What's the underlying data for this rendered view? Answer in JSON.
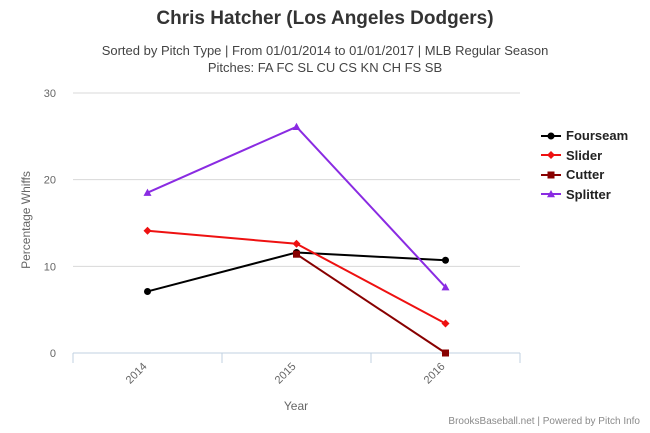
{
  "chart_data": {
    "type": "line",
    "title": "Chris Hatcher (Los Angeles Dodgers)",
    "subtitle_lines": [
      "Sorted by Pitch Type | From 01/01/2014 to 01/01/2017 | MLB Regular Season",
      "Pitches: FA FC SL CU CS KN CH FS SB"
    ],
    "xlabel": "Year",
    "ylabel": "Percentage Whiffs",
    "categories": [
      "2014",
      "2015",
      "2016"
    ],
    "ylim": [
      0,
      30
    ],
    "yticks": [
      0,
      10,
      20,
      30
    ],
    "grid": true,
    "legend_position": "right",
    "series": [
      {
        "name": "Fourseam",
        "color": "#000000",
        "marker": "circle",
        "values": [
          7.1,
          11.6,
          10.7
        ]
      },
      {
        "name": "Slider",
        "color": "#ee1111",
        "marker": "diamond",
        "values": [
          14.1,
          12.6,
          3.4
        ]
      },
      {
        "name": "Cutter",
        "color": "#880000",
        "marker": "square",
        "values": [
          null,
          11.4,
          0.0
        ]
      },
      {
        "name": "Splitter",
        "color": "#8a2be2",
        "marker": "triangle",
        "values": [
          18.5,
          26.1,
          7.6
        ]
      }
    ]
  },
  "credits": "BrooksBaseball.net | Powered by Pitch Info"
}
